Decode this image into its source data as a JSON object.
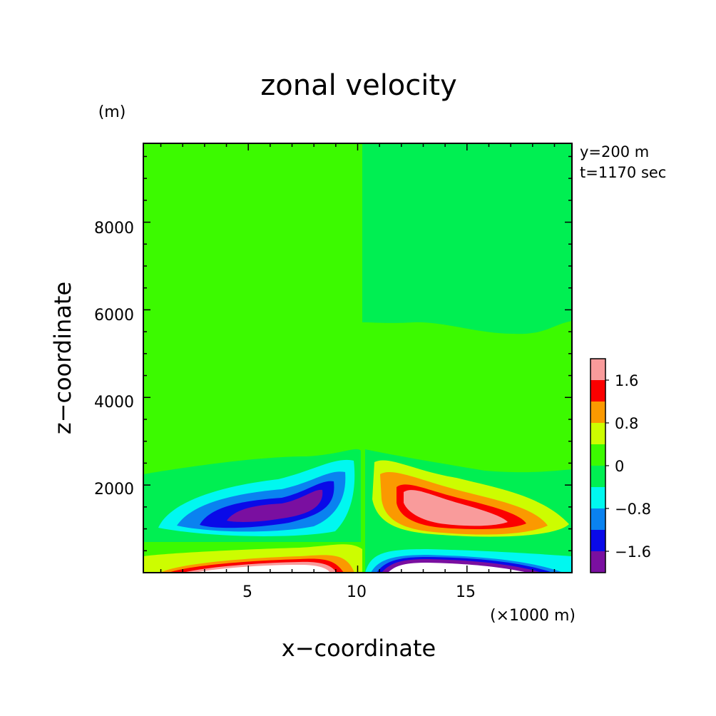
{
  "chart_data": {
    "type": "heatmap",
    "subtype": "filled-contour",
    "title": "zonal velocity",
    "xlabel": "x−coordinate",
    "ylabel": "z−coordinate",
    "x_unit": "(×1000 m)",
    "y_unit": "(m)",
    "xlim": [
      0.2,
      19.8
    ],
    "ylim": [
      0,
      9800
    ],
    "x_ticks": [
      5,
      10,
      15
    ],
    "x_tick_labels": [
      "5",
      "10",
      "15"
    ],
    "y_ticks": [
      2000,
      4000,
      6000,
      8000
    ],
    "y_tick_labels": [
      "2000",
      "4000",
      "6000",
      "8000"
    ],
    "annotations": [
      "y=200 m",
      "t=1170 sec"
    ],
    "colorbar": {
      "levels": [
        -2.0,
        -1.6,
        -1.2,
        -0.8,
        -0.4,
        0,
        0.4,
        0.8,
        1.2,
        1.6,
        2.0
      ],
      "tick_labels": [
        "−1.6",
        "−0.8",
        "0",
        "0.8",
        "1.6"
      ],
      "tick_values": [
        -1.6,
        -0.8,
        0,
        0.8,
        1.6
      ],
      "colors": [
        "#7a0fa0",
        "#0a0ae8",
        "#0a82f0",
        "#00f8f0",
        "#00ef52",
        "#3cfa00",
        "#cdfd00",
        "#fb9900",
        "#fb0000",
        "#f99b9b"
      ],
      "above_max_color": "#ffffff"
    },
    "background_color": "#3cfa00",
    "features": [
      {
        "name": "negative jet aloft",
        "x_range": [
          1.0,
          9.8
        ],
        "z_range": [
          650,
          2800
        ],
        "min": -1.6
      },
      {
        "name": "positive jet aloft",
        "x_range": [
          10.3,
          19.8
        ],
        "z_range": [
          650,
          2700
        ],
        "max": 1.6
      },
      {
        "name": "positive surface jet",
        "x_range": [
          1.0,
          9.8
        ],
        "z_range": [
          0,
          650
        ],
        "max": 2.0
      },
      {
        "name": "negative surface jet",
        "x_range": [
          10.3,
          19.8
        ],
        "z_range": [
          0,
          650
        ],
        "min": -2.0
      }
    ]
  }
}
